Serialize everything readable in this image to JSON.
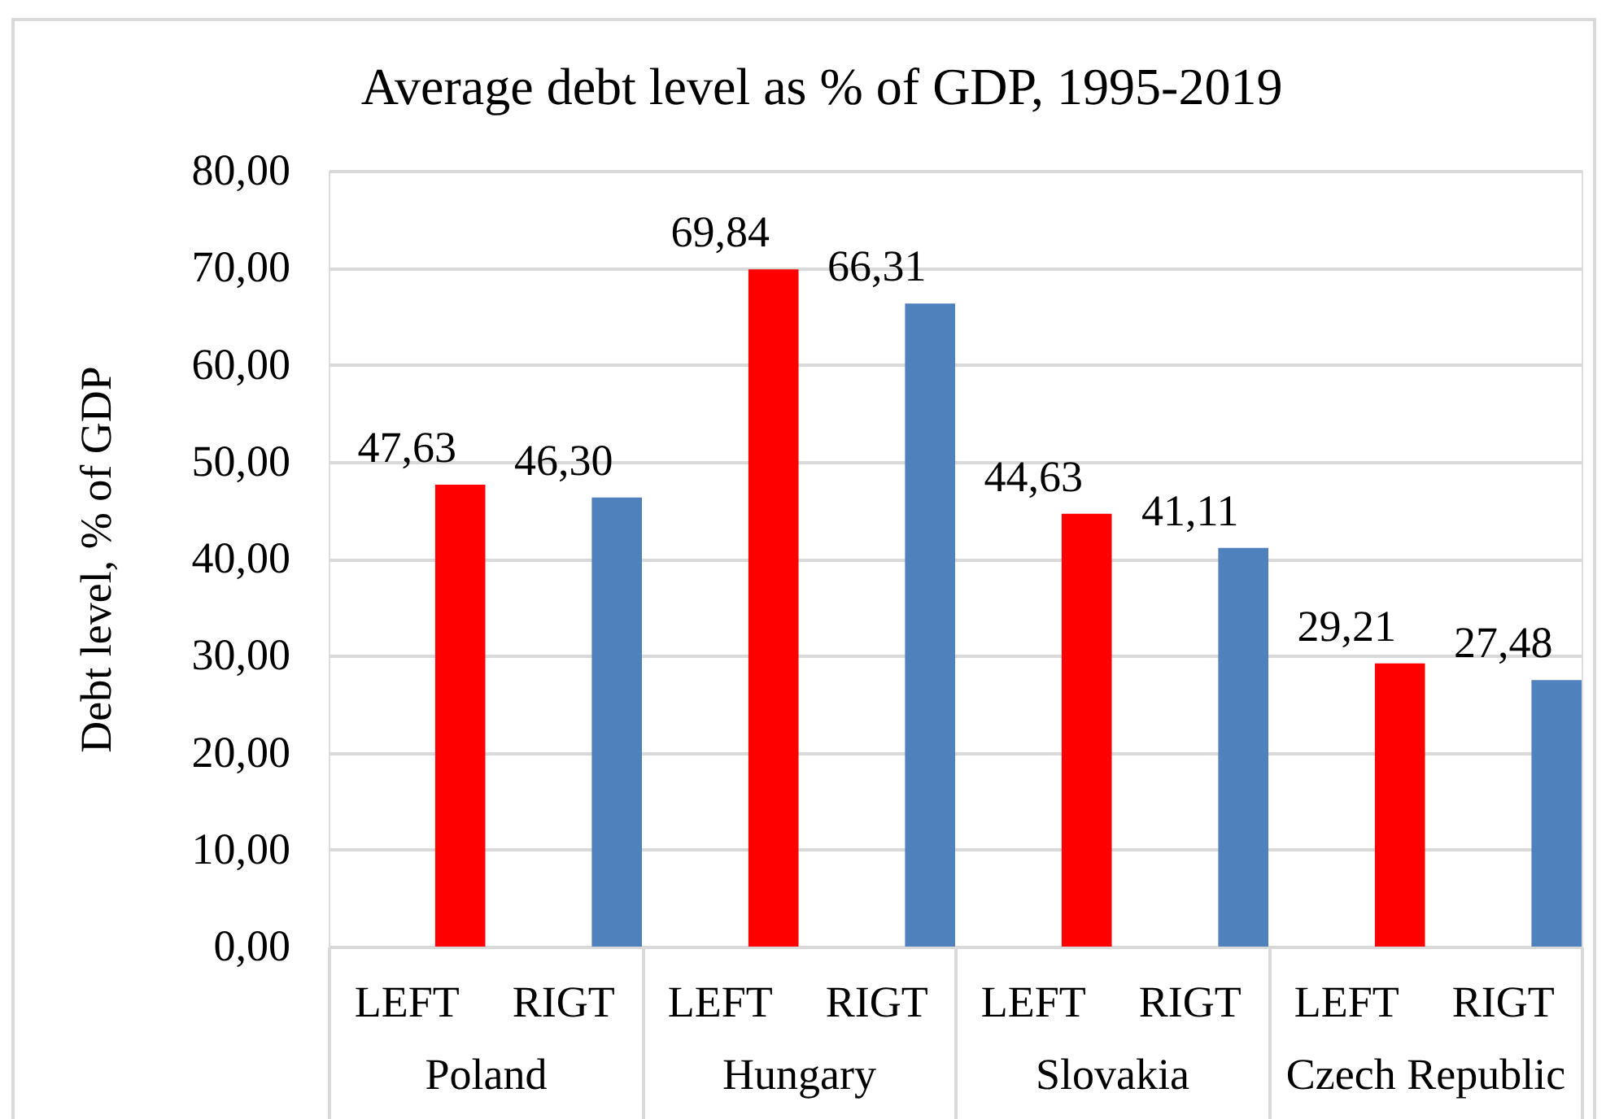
{
  "chart_data": {
    "type": "bar",
    "title": "Average debt level as % of GDP, 1995-2019",
    "ylabel": "Debt level, % of GDP",
    "categories": [
      "Poland",
      "Hungary",
      "Slovakia",
      "Czech Republic"
    ],
    "series": [
      {
        "name": "LEFT",
        "color": "#ff0000",
        "values": [
          47.63,
          69.84,
          44.63,
          29.21
        ],
        "value_labels": [
          "47,63",
          "69,84",
          "44,63",
          "29,21"
        ]
      },
      {
        "name": "RIGT",
        "color": "#4f81bd",
        "values": [
          46.3,
          66.31,
          41.11,
          27.48
        ],
        "value_labels": [
          "46,30",
          "66,31",
          "41,11",
          "27,48"
        ]
      }
    ],
    "ylim": [
      0,
      80
    ],
    "yticks": [
      {
        "value": 0,
        "label": "0,00"
      },
      {
        "value": 10,
        "label": "10,00"
      },
      {
        "value": 20,
        "label": "20,00"
      },
      {
        "value": 30,
        "label": "30,00"
      },
      {
        "value": 40,
        "label": "40,00"
      },
      {
        "value": 50,
        "label": "50,00"
      },
      {
        "value": 60,
        "label": "60,00"
      },
      {
        "value": 70,
        "label": "70,00"
      },
      {
        "value": 80,
        "label": "80,00"
      }
    ],
    "grid": "y",
    "legend": false
  }
}
